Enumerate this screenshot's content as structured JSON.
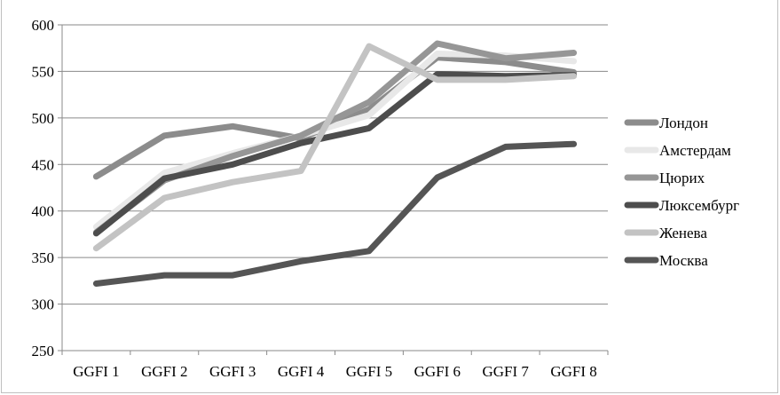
{
  "chart_data": {
    "type": "line",
    "categories": [
      "GGFI 1",
      "GGFI 2",
      "GGFI 3",
      "GGFI 4",
      "GGFI 5",
      "GGFI 6",
      "GGFI 7",
      "GGFI 8"
    ],
    "ylim": [
      250,
      600
    ],
    "yticks": [
      250,
      300,
      350,
      400,
      450,
      500,
      550,
      600
    ],
    "grid": true,
    "legend_position": "right",
    "series": [
      {
        "name": "Лондон",
        "color": "#8c8c8c",
        "values": [
          437,
          481,
          491,
          478,
          509,
          565,
          560,
          549
        ]
      },
      {
        "name": "Амстердам",
        "color": "#e8e8e8",
        "values": [
          383,
          441,
          462,
          481,
          503,
          569,
          567,
          561
        ]
      },
      {
        "name": "Цюрих",
        "color": "#969696",
        "values": [
          377,
          433,
          459,
          481,
          517,
          580,
          564,
          570
        ]
      },
      {
        "name": "Люксембург",
        "color": "#4d4d4d",
        "values": [
          376,
          435,
          450,
          473,
          489,
          547,
          545,
          546
        ]
      },
      {
        "name": "Женева",
        "color": "#c3c3c3",
        "values": [
          360,
          414,
          431,
          443,
          577,
          541,
          541,
          545
        ]
      },
      {
        "name": "Москва",
        "color": "#555555",
        "values": [
          322,
          331,
          331,
          346,
          357,
          436,
          469,
          472
        ]
      }
    ]
  }
}
